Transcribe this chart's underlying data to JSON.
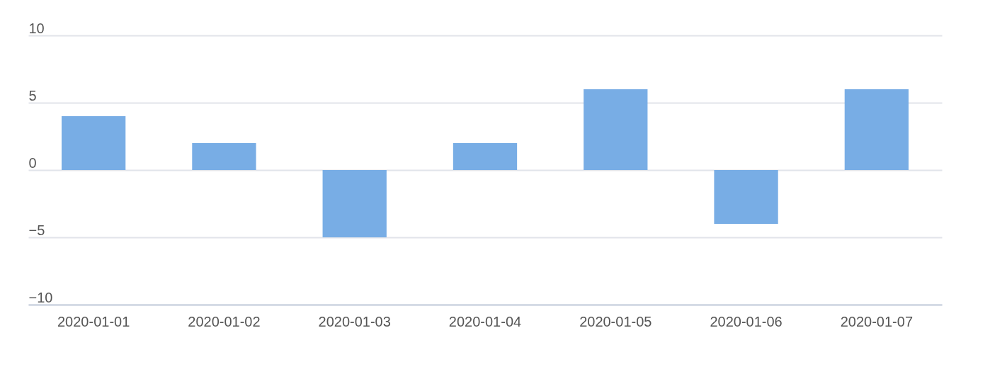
{
  "chart_data": {
    "type": "bar",
    "categories": [
      "2020-01-01",
      "2020-01-02",
      "2020-01-03",
      "2020-01-04",
      "2020-01-05",
      "2020-01-06",
      "2020-01-07"
    ],
    "values": [
      4,
      2,
      -5,
      2,
      6,
      -4,
      6
    ],
    "color": "#78ade5",
    "ylim": [
      -10,
      10
    ],
    "yticks": [
      -10,
      -5,
      0,
      5,
      10
    ],
    "grid": "y"
  }
}
